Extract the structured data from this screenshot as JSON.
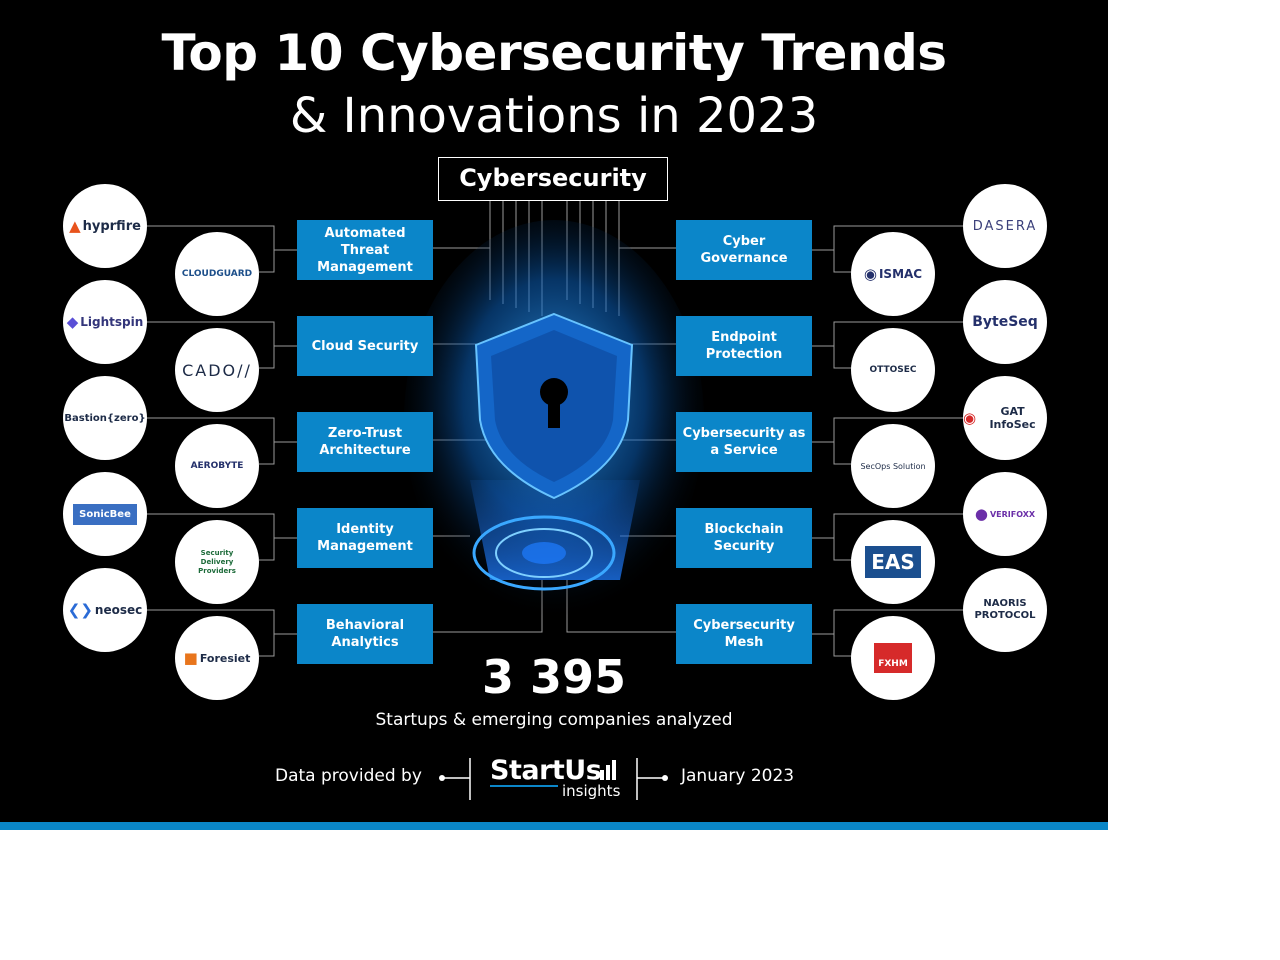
{
  "title": {
    "line1": "Top 10 Cybersecurity Trends",
    "line2": "& Innovations in 2023"
  },
  "root": "Cybersecurity",
  "trends_left": [
    "Automated Threat Management",
    "Cloud Security",
    "Zero-Trust Architecture",
    "Identity Management",
    "Behavioral Analytics"
  ],
  "trends_right": [
    "Cyber Governance",
    "Endpoint Protection",
    "Cybersecurity as a Service",
    "Blockchain Security",
    "Cybersecurity Mesh"
  ],
  "logos_left_outer": [
    "hyprfire",
    "Lightspin",
    "Bastion{zero}",
    "SonicBee",
    "neosec"
  ],
  "logos_left_inner": [
    "CLOUDGUARD",
    "CADO//",
    "AEROBYTE",
    "Security Delivery Providers",
    "Foresiet"
  ],
  "logos_right_outer": [
    "DASERA",
    "ByteSeq",
    "GAT InfoSec",
    "VERIFOXX",
    "NAORIS PROTOCOL"
  ],
  "logos_right_inner": [
    "ISMAC",
    "OTTOSEC",
    "SecOps Solution",
    "EAS",
    "FXHM"
  ],
  "stats": {
    "count": "3 395",
    "caption": "Startups & emerging companies analyzed"
  },
  "footer": {
    "provided_by": "Data provided by",
    "brand": "StartUs",
    "brand_sub": "insights",
    "date": "January 2023"
  },
  "colors": {
    "background": "#000000",
    "accent": "#0b86c9",
    "text": "#ffffff",
    "logo_bg": "#ffffff"
  }
}
